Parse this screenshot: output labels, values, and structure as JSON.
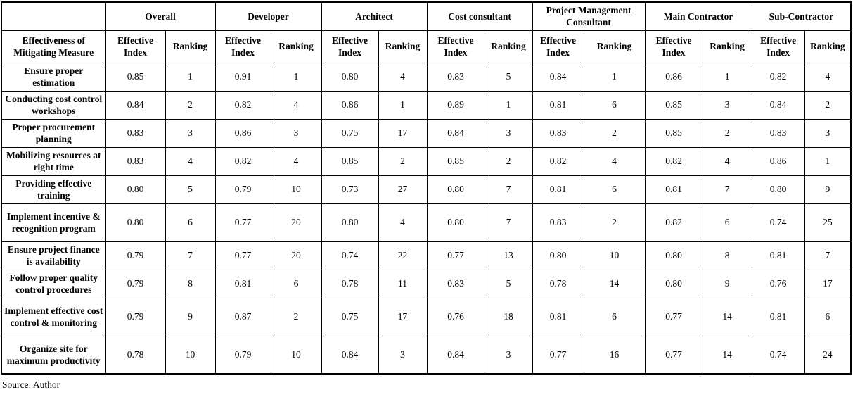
{
  "table": {
    "measure_header": "Effectiveness of Mitigating Measure",
    "sub_headers": {
      "index": "Effective Index",
      "ranking": "Ranking"
    },
    "groups": [
      "Overall",
      "Developer",
      "Architect",
      "Cost consultant",
      "Project Management Consultant",
      "Main Contractor",
      "Sub-Contractor"
    ],
    "rows": [
      {
        "measure": "Ensure proper estimation",
        "values": [
          [
            "0.85",
            "1"
          ],
          [
            "0.91",
            "1"
          ],
          [
            "0.80",
            "4"
          ],
          [
            "0.83",
            "5"
          ],
          [
            "0.84",
            "1"
          ],
          [
            "0.86",
            "1"
          ],
          [
            "0.82",
            "4"
          ]
        ]
      },
      {
        "measure": "Conducting cost control workshops",
        "values": [
          [
            "0.84",
            "2"
          ],
          [
            "0.82",
            "4"
          ],
          [
            "0.86",
            "1"
          ],
          [
            "0.89",
            "1"
          ],
          [
            "0.81",
            "6"
          ],
          [
            "0.85",
            "3"
          ],
          [
            "0.84",
            "2"
          ]
        ]
      },
      {
        "measure": "Proper procurement planning",
        "values": [
          [
            "0.83",
            "3"
          ],
          [
            "0.86",
            "3"
          ],
          [
            "0.75",
            "17"
          ],
          [
            "0.84",
            "3"
          ],
          [
            "0.83",
            "2"
          ],
          [
            "0.85",
            "2"
          ],
          [
            "0.83",
            "3"
          ]
        ]
      },
      {
        "measure": "Mobilizing resources at right time",
        "values": [
          [
            "0.83",
            "4"
          ],
          [
            "0.82",
            "4"
          ],
          [
            "0.85",
            "2"
          ],
          [
            "0.85",
            "2"
          ],
          [
            "0.82",
            "4"
          ],
          [
            "0.82",
            "4"
          ],
          [
            "0.86",
            "1"
          ]
        ]
      },
      {
        "measure": "Providing effective training",
        "values": [
          [
            "0.80",
            "5"
          ],
          [
            "0.79",
            "10"
          ],
          [
            "0.73",
            "27"
          ],
          [
            "0.80",
            "7"
          ],
          [
            "0.81",
            "6"
          ],
          [
            "0.81",
            "7"
          ],
          [
            "0.80",
            "9"
          ]
        ]
      },
      {
        "measure": "Implement incentive & recognition program",
        "values": [
          [
            "0.80",
            "6"
          ],
          [
            "0.77",
            "20"
          ],
          [
            "0.80",
            "4"
          ],
          [
            "0.80",
            "7"
          ],
          [
            "0.83",
            "2"
          ],
          [
            "0.82",
            "6"
          ],
          [
            "0.74",
            "25"
          ]
        ]
      },
      {
        "measure": "Ensure project finance is availability",
        "values": [
          [
            "0.79",
            "7"
          ],
          [
            "0.77",
            "20"
          ],
          [
            "0.74",
            "22"
          ],
          [
            "0.77",
            "13"
          ],
          [
            "0.80",
            "10"
          ],
          [
            "0.80",
            "8"
          ],
          [
            "0.81",
            "7"
          ]
        ]
      },
      {
        "measure": "Follow proper quality control procedures",
        "values": [
          [
            "0.79",
            "8"
          ],
          [
            "0.81",
            "6"
          ],
          [
            "0.78",
            "11"
          ],
          [
            "0.83",
            "5"
          ],
          [
            "0.78",
            "14"
          ],
          [
            "0.80",
            "9"
          ],
          [
            "0.76",
            "17"
          ]
        ]
      },
      {
        "measure": "Implement effective cost control & monitoring",
        "values": [
          [
            "0.79",
            "9"
          ],
          [
            "0.87",
            "2"
          ],
          [
            "0.75",
            "17"
          ],
          [
            "0.76",
            "18"
          ],
          [
            "0.81",
            "6"
          ],
          [
            "0.77",
            "14"
          ],
          [
            "0.81",
            "6"
          ]
        ]
      },
      {
        "measure": "Organize site for maximum productivity",
        "values": [
          [
            "0.78",
            "10"
          ],
          [
            "0.79",
            "10"
          ],
          [
            "0.84",
            "3"
          ],
          [
            "0.84",
            "3"
          ],
          [
            "0.77",
            "16"
          ],
          [
            "0.77",
            "14"
          ],
          [
            "0.74",
            "24"
          ]
        ]
      }
    ]
  },
  "footer": {
    "source": "Source: Author"
  }
}
